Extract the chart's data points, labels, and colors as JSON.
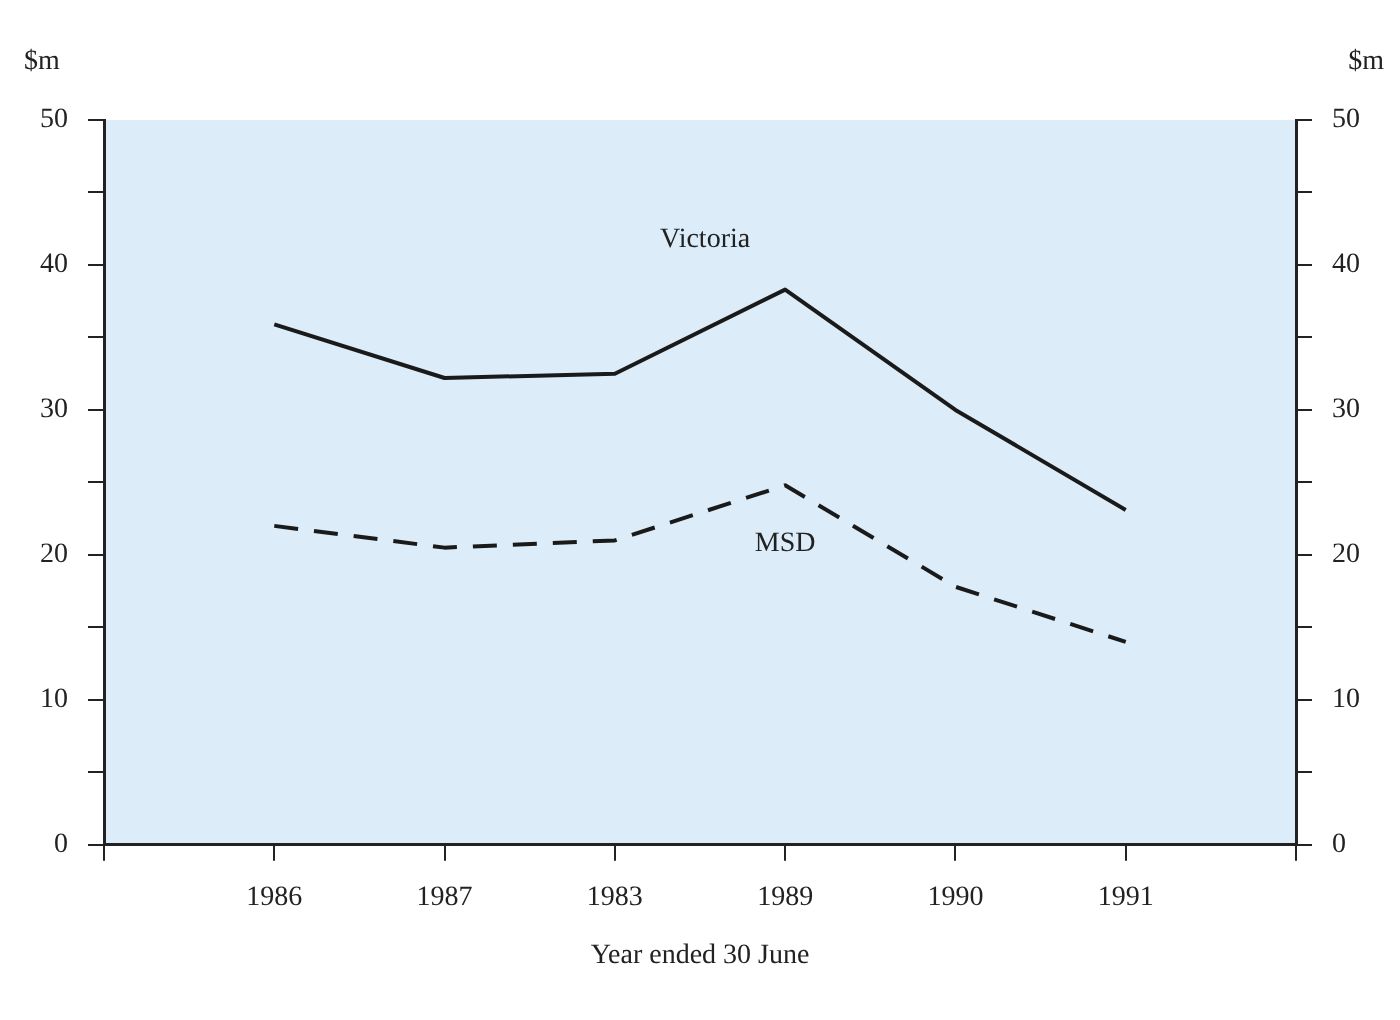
{
  "chart_data": {
    "type": "line",
    "xlabel": "Year ended 30 June",
    "ylabel": "$m",
    "y2label": "$m",
    "categories": [
      null,
      "1986",
      "1987",
      "1983",
      "1989",
      "1990",
      "1991",
      null
    ],
    "series": [
      {
        "name": "Victoria",
        "color": "#1a1a1a",
        "line_style": "solid",
        "values": [
          null,
          35.9,
          32.2,
          32.5,
          38.3,
          30.0,
          23.1,
          null
        ]
      },
      {
        "name": "MSD",
        "color": "#1a1a1a",
        "line_style": "dashed",
        "values": [
          null,
          22.0,
          20.5,
          21.0,
          24.8,
          17.8,
          14.0,
          null
        ]
      }
    ],
    "ylim": [
      0,
      50
    ],
    "yticks": [
      0,
      {
        "value": 5,
        "label": null
      },
      10,
      {
        "value": 15,
        "label": null
      },
      20,
      {
        "value": 25,
        "label": null
      },
      30,
      {
        "value": 35,
        "label": null
      },
      40,
      {
        "value": 45,
        "label": null
      },
      50
    ],
    "y2lim": [
      0,
      50
    ],
    "y2ticks": [
      0,
      {
        "value": 5,
        "label": null
      },
      10,
      {
        "value": 15,
        "label": null
      },
      20,
      {
        "value": 25,
        "label": null
      },
      30,
      {
        "value": 35,
        "label": null
      },
      40,
      {
        "value": 45,
        "label": null
      },
      50
    ],
    "grid": false,
    "legend": false,
    "marker": "none"
  }
}
